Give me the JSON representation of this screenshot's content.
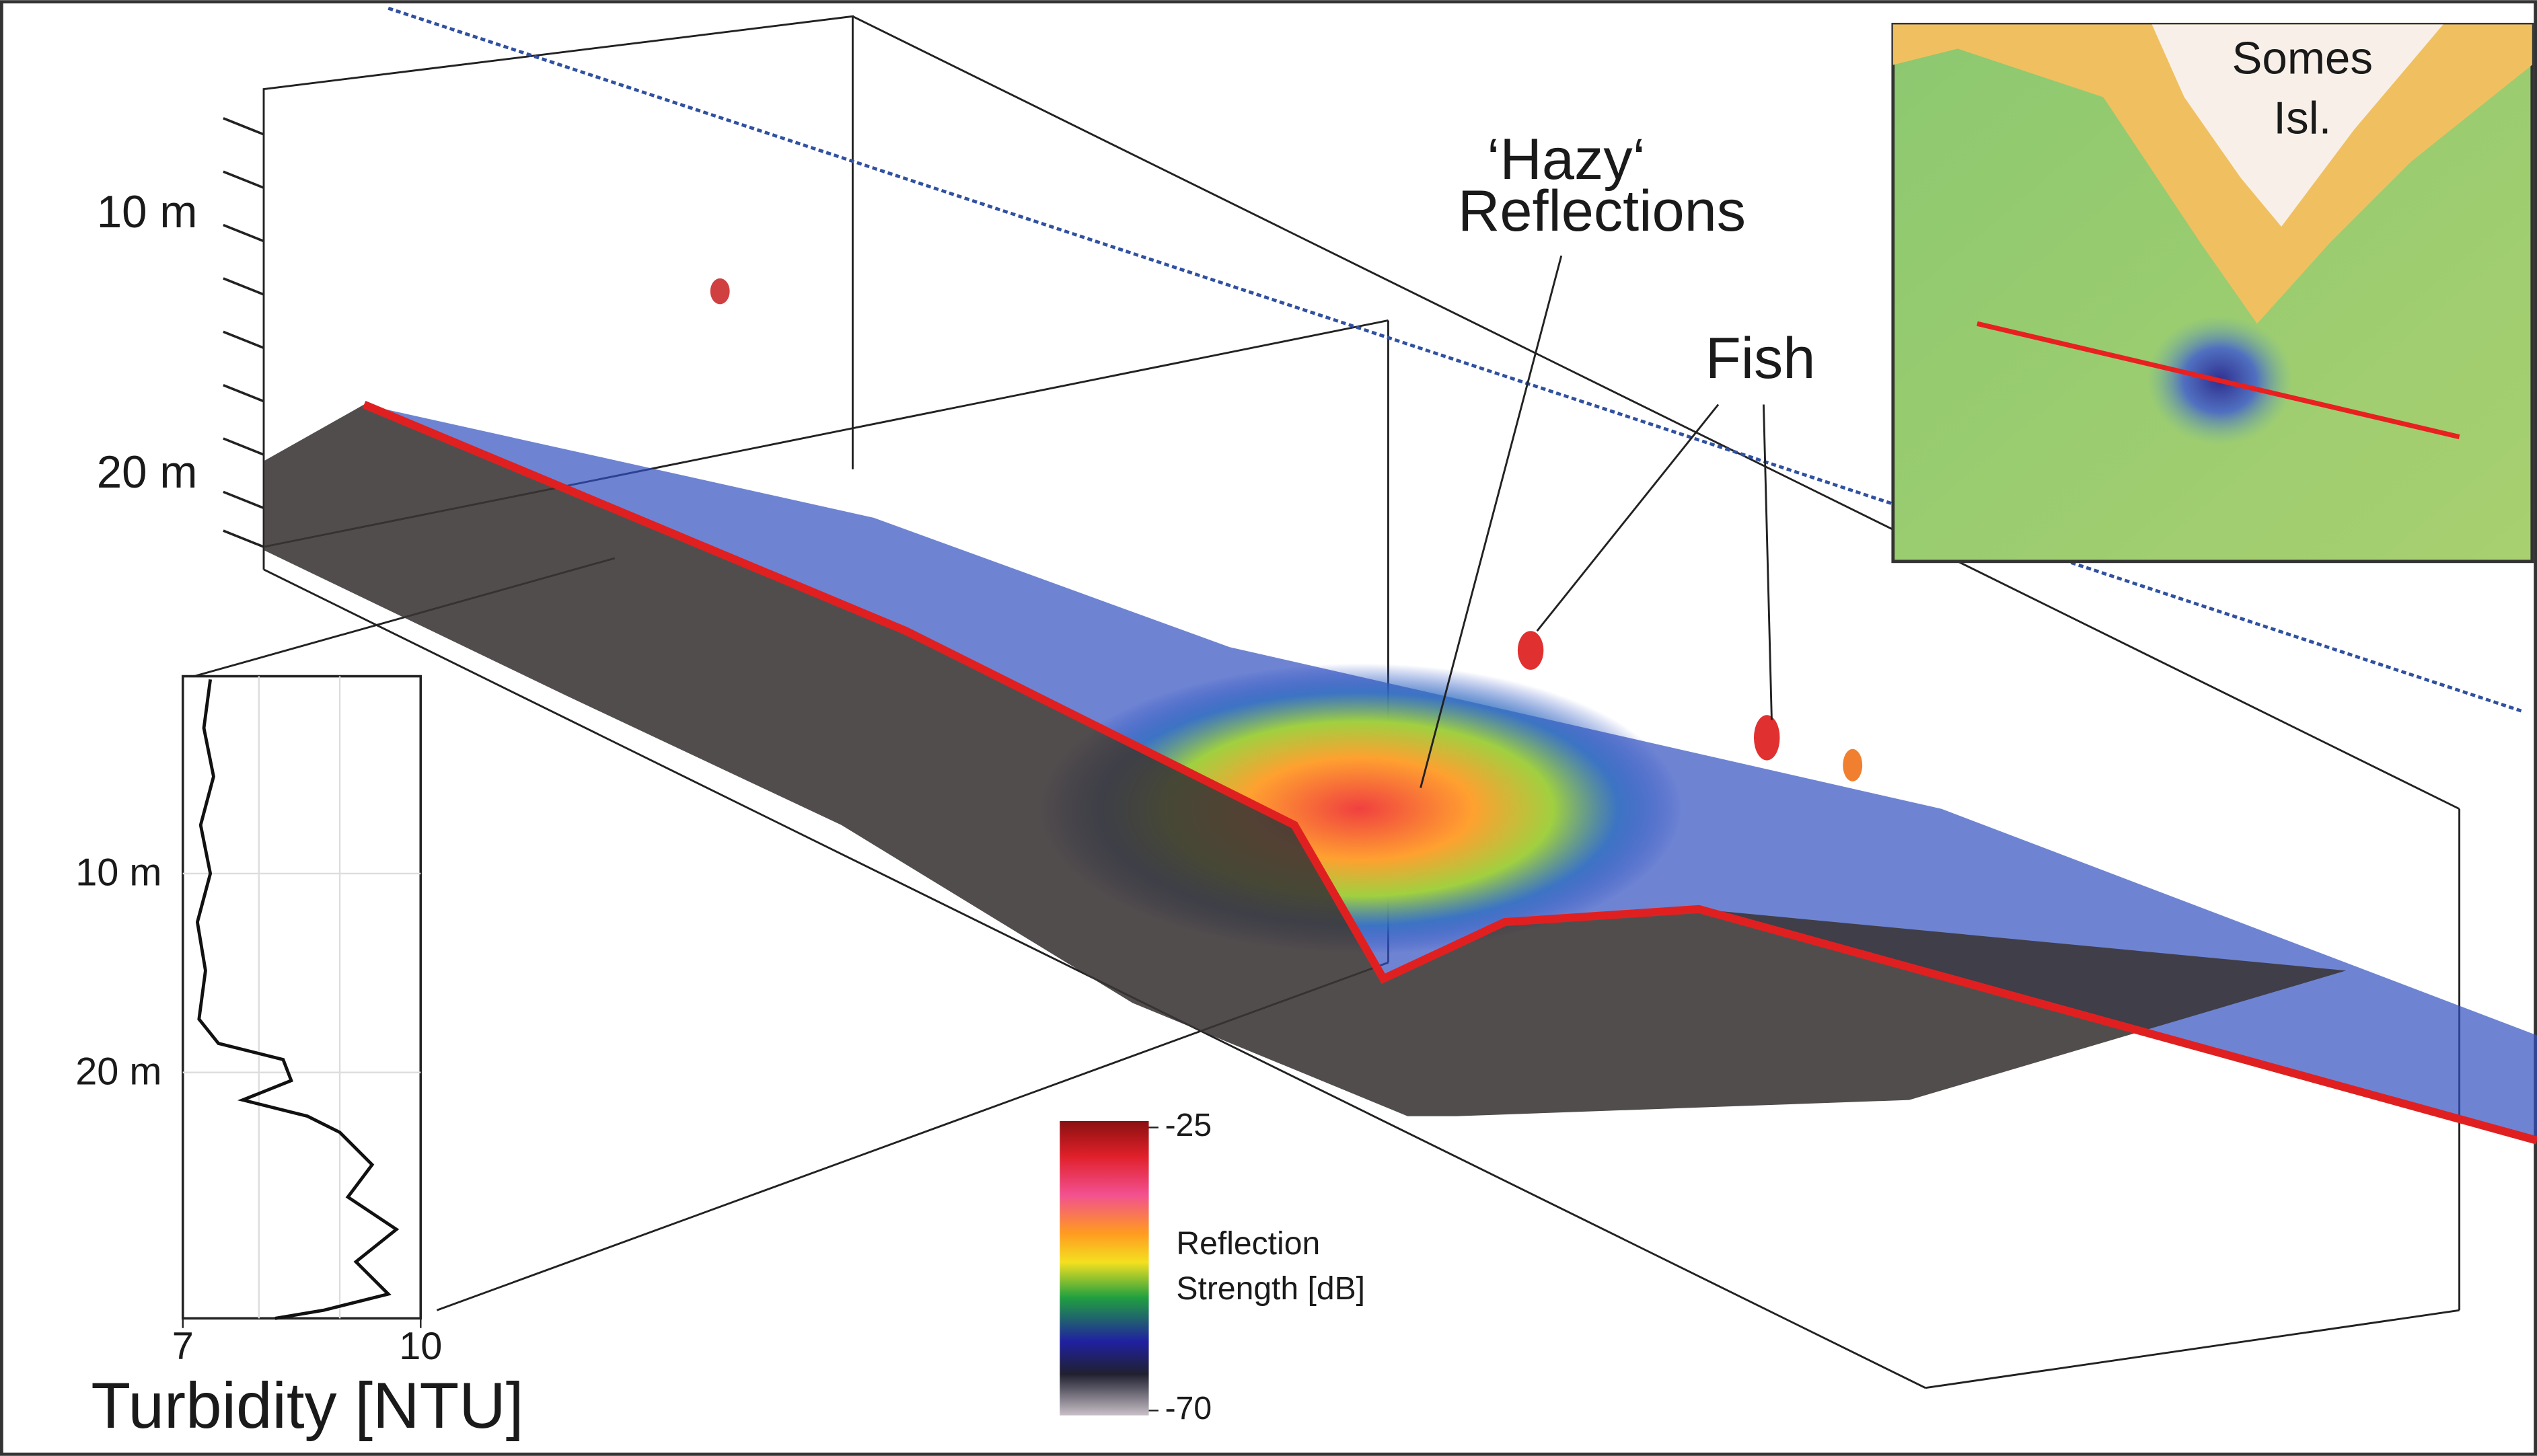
{
  "echogram": {
    "depth_labels": [
      "10 m",
      "20 m"
    ]
  },
  "annotations": {
    "hazy": [
      "‘Hazy‘",
      "Reflections"
    ],
    "fish": "Fish"
  },
  "inset_map": {
    "label": [
      "Somes",
      "Isl."
    ]
  },
  "turbidity_profile": {
    "depth_labels": [
      "10 m",
      "20 m"
    ],
    "xticks": [
      7,
      10
    ],
    "xlabel": "Turbidity [NTU]"
  },
  "colorbar": {
    "ticks": [
      -25,
      -70
    ],
    "label": [
      "Reflection",
      "Strength [dB]"
    ]
  }
}
